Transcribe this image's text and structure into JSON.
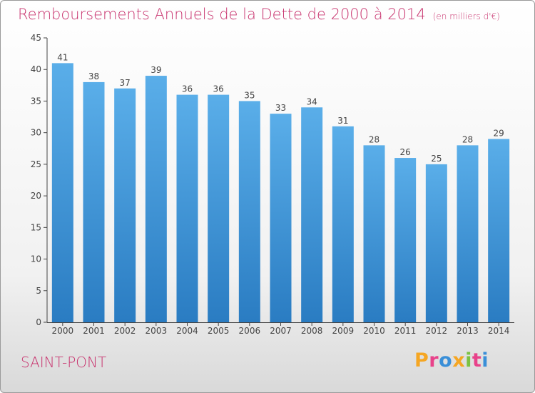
{
  "chart_data": {
    "type": "bar",
    "title": "Remboursements Annuels de la Dette de 2000 à 2014",
    "unit_label": "(en milliers d'€)",
    "categories": [
      "2000",
      "2001",
      "2002",
      "2003",
      "2004",
      "2005",
      "2006",
      "2007",
      "2008",
      "2009",
      "2010",
      "2011",
      "2012",
      "2013",
      "2014"
    ],
    "values": [
      41,
      38,
      37,
      39,
      36,
      36,
      35,
      33,
      34,
      31,
      28,
      26,
      25,
      28,
      29
    ],
    "yticks": [
      "0",
      "5",
      "10",
      "15",
      "20",
      "25",
      "30",
      "35",
      "40",
      "45"
    ],
    "ylim": [
      0,
      45
    ],
    "xlabel": "",
    "ylabel": "",
    "grid": false,
    "bar_color_top": "#5aaee9",
    "bar_color_bottom": "#2a7cc2"
  },
  "footer": {
    "commune": "SAINT-PONT",
    "logo_text": "Proxiti"
  },
  "colors": {
    "title": "#c8336e",
    "logo_letters": [
      "#f5a623",
      "#e8428a",
      "#3a8fd8",
      "#f5a623",
      "#7cc242",
      "#e8428a",
      "#3a8fd8"
    ]
  }
}
